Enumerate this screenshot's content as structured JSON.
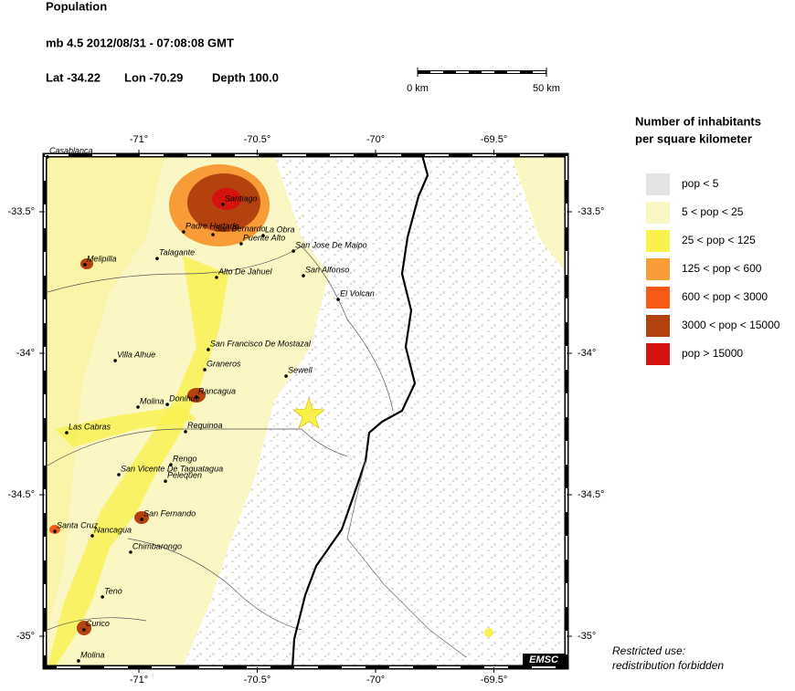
{
  "header": {
    "title": "Population",
    "event": "mb 4.5  2012/08/31 - 07:08:08 GMT",
    "lat": "Lat -34.22",
    "lon": "Lon -70.29",
    "depth": "Depth 100.0"
  },
  "scale_bar": {
    "start": "0 km",
    "end": "50 km"
  },
  "map": {
    "lon_ticks": [
      {
        "value": -71,
        "label": "-71°"
      },
      {
        "value": -70.5,
        "label": "-70.5°"
      },
      {
        "value": -70,
        "label": "-70°"
      },
      {
        "value": -69.5,
        "label": "-69.5°"
      }
    ],
    "lat_ticks": [
      {
        "value": -33.5,
        "label": "-33.5°"
      },
      {
        "value": -34,
        "label": "-34°"
      },
      {
        "value": -34.5,
        "label": "-34.5°"
      },
      {
        "value": -35,
        "label": "-35°"
      }
    ],
    "cities": [
      {
        "name": "Casablanca",
        "lon": -71.386,
        "lat": -33.306
      },
      {
        "name": "Santiago",
        "lon": -70.645,
        "lat": -33.474
      },
      {
        "name": "Padre Hurtado",
        "lon": -70.811,
        "lat": -33.571
      },
      {
        "name": "San Bernardo",
        "lon": -70.687,
        "lat": -33.581
      },
      {
        "name": "La Obra",
        "lon": -70.475,
        "lat": -33.584
      },
      {
        "name": "Puente Alto",
        "lon": -70.568,
        "lat": -33.613
      },
      {
        "name": "San Jose De Maipo",
        "lon": -70.347,
        "lat": -33.639
      },
      {
        "name": "Talagante",
        "lon": -70.923,
        "lat": -33.665
      },
      {
        "name": "Melipilla",
        "lon": -71.228,
        "lat": -33.687
      },
      {
        "name": "Alto De Jahuel",
        "lon": -70.672,
        "lat": -33.732
      },
      {
        "name": "San Alfonso",
        "lon": -70.305,
        "lat": -33.726
      },
      {
        "name": "El Volcan",
        "lon": -70.158,
        "lat": -33.81
      },
      {
        "name": "San Francisco De Mostazal",
        "lon": -70.707,
        "lat": -33.987
      },
      {
        "name": "Villa Alhue",
        "lon": -71.1,
        "lat": -34.026
      },
      {
        "name": "Graneros",
        "lon": -70.722,
        "lat": -34.058
      },
      {
        "name": "Sewell",
        "lon": -70.378,
        "lat": -34.081
      },
      {
        "name": "Rancagua",
        "lon": -70.757,
        "lat": -34.155
      },
      {
        "name": "Donihue",
        "lon": -70.88,
        "lat": -34.181
      },
      {
        "name": "Molina",
        "lon": -71.004,
        "lat": -34.19
      },
      {
        "name": "Las Cabras",
        "lon": -71.305,
        "lat": -34.281
      },
      {
        "name": "Requinoa",
        "lon": -70.803,
        "lat": -34.277
      },
      {
        "name": "Rengo",
        "lon": -70.865,
        "lat": -34.394
      },
      {
        "name": "San Vicente De Taguatagua",
        "lon": -71.085,
        "lat": -34.429
      },
      {
        "name": "Pelequen",
        "lon": -70.888,
        "lat": -34.452
      },
      {
        "name": "San Fernando",
        "lon": -70.988,
        "lat": -34.587
      },
      {
        "name": "Santa Cruz",
        "lon": -71.355,
        "lat": -34.629
      },
      {
        "name": "Nancagua",
        "lon": -71.197,
        "lat": -34.645
      },
      {
        "name": "Chimbarongo",
        "lon": -71.035,
        "lat": -34.703
      },
      {
        "name": "Teno",
        "lon": -71.154,
        "lat": -34.861
      },
      {
        "name": "Curico",
        "lon": -71.232,
        "lat": -34.977
      },
      {
        "name": "Molina",
        "lon": -71.255,
        "lat": -35.087
      }
    ],
    "logo": "EMSC"
  },
  "legend": {
    "title": [
      "Number of inhabitants",
      "per square kilometer"
    ],
    "items": [
      {
        "label": "pop < 5",
        "color": "#e4e4e2"
      },
      {
        "label": "5 < pop < 25",
        "color": "#fbf7c4"
      },
      {
        "label": "25 < pop < 125",
        "color": "#f8f04c"
      },
      {
        "label": "125 < pop < 600",
        "color": "#f99c38"
      },
      {
        "label": "600 < pop < 3000",
        "color": "#f65a18"
      },
      {
        "label": "3000 < pop < 15000",
        "color": "#b3420e"
      },
      {
        "label": "pop > 15000",
        "color": "#d4120e"
      }
    ]
  },
  "footer": [
    "Restricted use:",
    "redistribution forbidden"
  ]
}
